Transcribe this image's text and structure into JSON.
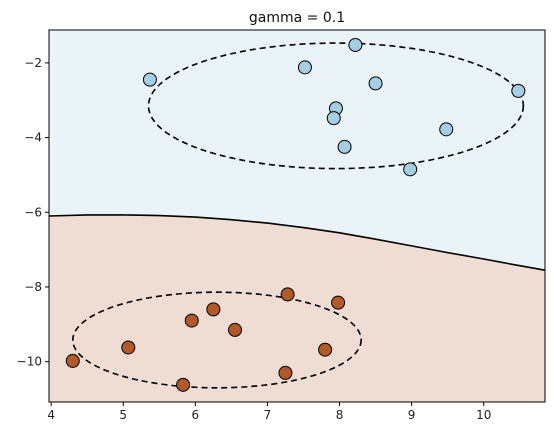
{
  "chart_data": {
    "type": "scatter",
    "title": "gamma = 0.1",
    "xlabel": "",
    "ylabel": "",
    "xlim": [
      3.97,
      10.85
    ],
    "ylim": [
      -11.08,
      -1.12
    ],
    "xticks": [
      4,
      5,
      6,
      7,
      8,
      9,
      10
    ],
    "yticks": [
      -2,
      -4,
      -6,
      -8,
      -10
    ],
    "grid": false,
    "series": [
      {
        "color": "#a6cee3",
        "points": [
          [
            5.37,
            -2.45
          ],
          [
            7.52,
            -2.12
          ],
          [
            8.22,
            -1.52
          ],
          [
            8.5,
            -2.55
          ],
          [
            10.48,
            -2.75
          ],
          [
            7.95,
            -3.22
          ],
          [
            7.92,
            -3.48
          ],
          [
            8.07,
            -4.25
          ],
          [
            9.48,
            -3.78
          ],
          [
            8.98,
            -4.85
          ]
        ]
      },
      {
        "color": "#b15928",
        "points": [
          [
            4.3,
            -9.98
          ],
          [
            5.07,
            -9.62
          ],
          [
            5.95,
            -8.9
          ],
          [
            6.25,
            -8.6
          ],
          [
            6.55,
            -9.15
          ],
          [
            7.28,
            -8.2
          ],
          [
            7.98,
            -8.42
          ],
          [
            7.8,
            -9.68
          ],
          [
            7.25,
            -10.3
          ],
          [
            5.83,
            -10.62
          ]
        ]
      }
    ],
    "decision_boundary": {
      "x": [
        3.97,
        4.5,
        5.0,
        5.5,
        6.0,
        6.5,
        7.0,
        7.5,
        8.0,
        8.5,
        9.0,
        9.5,
        10.0,
        10.5,
        10.85
      ],
      "y": [
        -6.1,
        -6.07,
        -6.07,
        -6.09,
        -6.13,
        -6.2,
        -6.29,
        -6.41,
        -6.55,
        -6.72,
        -6.9,
        -7.08,
        -7.25,
        -7.43,
        -7.55
      ]
    },
    "region_colors": {
      "upper": "#eaf3f8",
      "lower": "#efdcd3"
    },
    "ellipses": [
      {
        "center": [
          7.95,
          -3.15
        ],
        "rx": 2.6,
        "ry": 1.68
      },
      {
        "center": [
          6.3,
          -9.42
        ],
        "rx": 2.0,
        "ry": 1.28
      }
    ]
  }
}
